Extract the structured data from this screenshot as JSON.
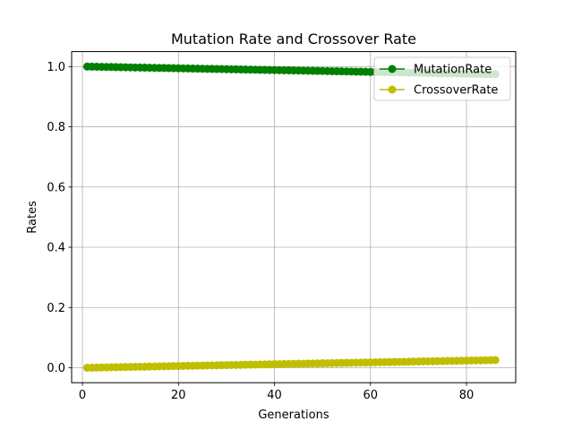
{
  "chart_data": {
    "type": "line",
    "title": "Mutation Rate and Crossover Rate",
    "xlabel": "Generations",
    "ylabel": "Rates",
    "xlim": [
      -2.25,
      90.25
    ],
    "ylim": [
      -0.0497,
      1.0497
    ],
    "xticks": [
      0,
      20,
      40,
      60,
      80
    ],
    "xtick_labels": [
      "0",
      "20",
      "40",
      "60",
      "80"
    ],
    "yticks": [
      0.0,
      0.2,
      0.4,
      0.6,
      0.8,
      1.0
    ],
    "ytick_labels": [
      "0.0",
      "0.2",
      "0.4",
      "0.6",
      "0.8",
      "1.0"
    ],
    "grid": true,
    "legend_position": "top-right",
    "x": [
      1,
      2,
      3,
      4,
      5,
      6,
      7,
      8,
      9,
      10,
      11,
      12,
      13,
      14,
      15,
      16,
      17,
      18,
      19,
      20,
      21,
      22,
      23,
      24,
      25,
      26,
      27,
      28,
      29,
      30,
      31,
      32,
      33,
      34,
      35,
      36,
      37,
      38,
      39,
      40,
      41,
      42,
      43,
      44,
      45,
      46,
      47,
      48,
      49,
      50,
      51,
      52,
      53,
      54,
      55,
      56,
      57,
      58,
      59,
      60,
      61,
      62,
      63,
      64,
      65,
      66,
      67,
      68,
      69,
      70,
      71,
      72,
      73,
      74,
      75,
      76,
      77,
      78,
      79,
      80,
      81,
      82,
      83,
      84,
      85,
      86
    ],
    "series": [
      {
        "name": "MutationRate",
        "color": "#008000",
        "marker": "circle",
        "values": [
          1.0,
          0.9997,
          0.9994,
          0.9991,
          0.9988,
          0.9985,
          0.9982,
          0.9979,
          0.9976,
          0.9973,
          0.997,
          0.9967,
          0.9964,
          0.9961,
          0.9958,
          0.9955,
          0.9952,
          0.9949,
          0.9946,
          0.9943,
          0.994,
          0.9937,
          0.9934,
          0.9931,
          0.9928,
          0.9925,
          0.9922,
          0.9919,
          0.9916,
          0.9913,
          0.991,
          0.9907,
          0.9904,
          0.9901,
          0.9898,
          0.9895,
          0.9892,
          0.9889,
          0.9886,
          0.9883,
          0.988,
          0.9877,
          0.9874,
          0.9871,
          0.9868,
          0.9865,
          0.9862,
          0.9859,
          0.9856,
          0.9853,
          0.985,
          0.9847,
          0.9844,
          0.9841,
          0.9838,
          0.9835,
          0.9832,
          0.9829,
          0.9826,
          0.9823,
          0.982,
          0.9817,
          0.9814,
          0.9811,
          0.9808,
          0.9805,
          0.9802,
          0.9799,
          0.9796,
          0.9793,
          0.979,
          0.9787,
          0.9784,
          0.9781,
          0.9778,
          0.9775,
          0.9772,
          0.9769,
          0.9766,
          0.9763,
          0.976,
          0.9757,
          0.9754,
          0.9751,
          0.9748,
          0.9745
        ]
      },
      {
        "name": "CrossoverRate",
        "color": "#bfbf00",
        "marker": "circle",
        "values": [
          0.0,
          0.0003,
          0.0006,
          0.0009,
          0.0012,
          0.0015,
          0.0018,
          0.0021,
          0.0024,
          0.0027,
          0.003,
          0.0033,
          0.0036,
          0.0039,
          0.0042,
          0.0045,
          0.0048,
          0.0051,
          0.0054,
          0.0057,
          0.006,
          0.0063,
          0.0066,
          0.0069,
          0.0072,
          0.0075,
          0.0078,
          0.0081,
          0.0084,
          0.0087,
          0.009,
          0.0093,
          0.0096,
          0.0099,
          0.0102,
          0.0105,
          0.0108,
          0.0111,
          0.0114,
          0.0117,
          0.012,
          0.0123,
          0.0126,
          0.0129,
          0.0132,
          0.0135,
          0.0138,
          0.0141,
          0.0144,
          0.0147,
          0.015,
          0.0153,
          0.0156,
          0.0159,
          0.0162,
          0.0165,
          0.0168,
          0.0171,
          0.0174,
          0.0177,
          0.018,
          0.0183,
          0.0186,
          0.0189,
          0.0192,
          0.0195,
          0.0198,
          0.0201,
          0.0204,
          0.0207,
          0.021,
          0.0213,
          0.0216,
          0.0219,
          0.0222,
          0.0225,
          0.0228,
          0.0231,
          0.0234,
          0.0237,
          0.024,
          0.0243,
          0.0246,
          0.0249,
          0.0252,
          0.0255
        ]
      }
    ]
  }
}
